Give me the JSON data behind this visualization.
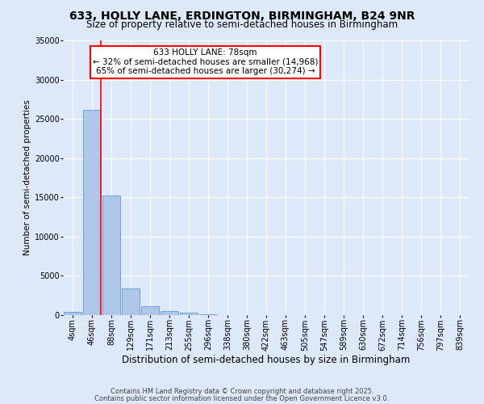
{
  "title_line1": "633, HOLLY LANE, ERDINGTON, BIRMINGHAM, B24 9NR",
  "title_line2": "Size of property relative to semi-detached houses in Birmingham",
  "xlabel": "Distribution of semi-detached houses by size in Birmingham",
  "ylabel": "Number of semi-detached properties",
  "annotation_line1": "633 HOLLY LANE: 78sqm",
  "annotation_line2": "← 32% of semi-detached houses are smaller (14,968)",
  "annotation_line3": "65% of semi-detached houses are larger (30,274) →",
  "footer_line1": "Contains HM Land Registry data © Crown copyright and database right 2025.",
  "footer_line2": "Contains public sector information licensed under the Open Government Licence v3.0.",
  "bin_labels": [
    "4sqm",
    "46sqm",
    "88sqm",
    "129sqm",
    "171sqm",
    "213sqm",
    "255sqm",
    "296sqm",
    "338sqm",
    "380sqm",
    "422sqm",
    "463sqm",
    "505sqm",
    "547sqm",
    "589sqm",
    "630sqm",
    "672sqm",
    "714sqm",
    "756sqm",
    "797sqm",
    "839sqm"
  ],
  "bar_values": [
    400,
    26100,
    15200,
    3400,
    1100,
    550,
    350,
    100,
    0,
    0,
    0,
    0,
    0,
    0,
    0,
    0,
    0,
    0,
    0,
    0,
    0
  ],
  "bar_color": "#aec6e8",
  "bar_edgecolor": "#5b9bd5",
  "vline_color": "red",
  "vline_bin_index": 1,
  "ylim": [
    0,
    35000
  ],
  "yticks": [
    0,
    5000,
    10000,
    15000,
    20000,
    25000,
    30000,
    35000
  ],
  "background_color": "#dde8f8",
  "grid_color": "#ffffff",
  "annotation_box_edgecolor": "red",
  "annotation_box_facecolor": "white",
  "title_fontsize": 10,
  "subtitle_fontsize": 8.5,
  "ylabel_fontsize": 7.5,
  "xlabel_fontsize": 8.5,
  "tick_fontsize": 7,
  "annotation_fontsize": 7.5,
  "footer_fontsize": 6
}
